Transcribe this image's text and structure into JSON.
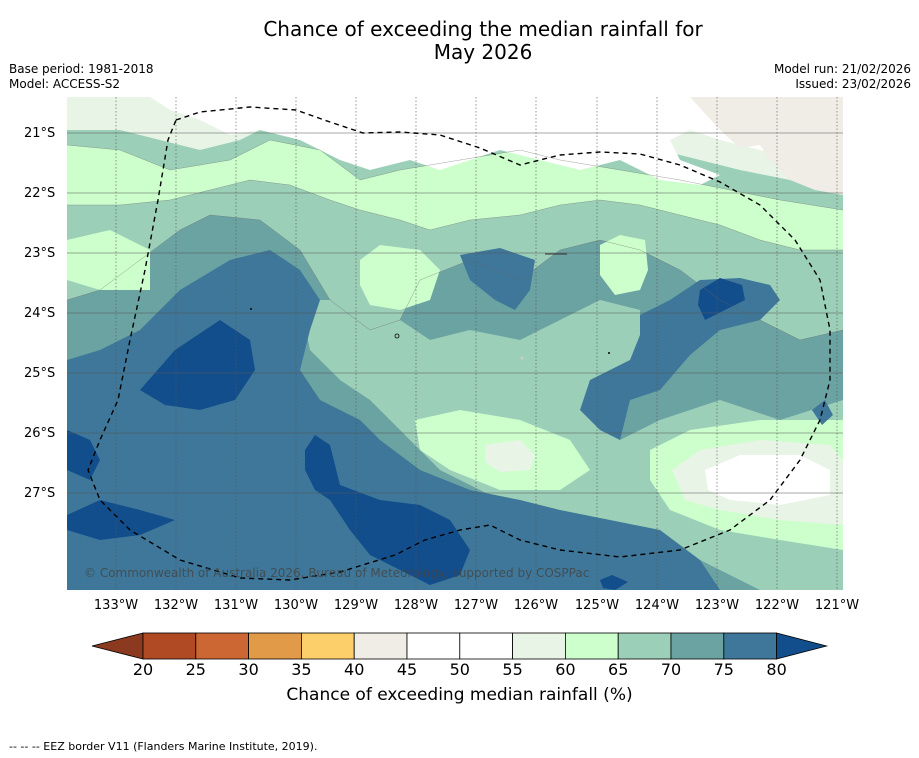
{
  "title": {
    "line1": "Chance of exceeding the median rainfall for",
    "line2": "May 2026"
  },
  "meta_left": {
    "base_period": "Base period: 1981-2018",
    "model": "Model: ACCESS-S2"
  },
  "meta_right": {
    "model_run": "Model run: 21/02/2026",
    "issued": "Issued: 23/02/2026"
  },
  "map": {
    "copyright": "© Commonwealth of Australia 2026, Bureau of Meteorology, supported by COSPPac",
    "lat_labels": [
      "21°S",
      "22°S",
      "23°S",
      "24°S",
      "25°S",
      "26°S",
      "27°S"
    ],
    "lon_labels": [
      "133°W",
      "132°W",
      "131°W",
      "130°W",
      "129°W",
      "128°W",
      "127°W",
      "126°W",
      "125°W",
      "124°W",
      "123°W",
      "122°W",
      "121°W"
    ]
  },
  "colorbar": {
    "ticks": [
      "20",
      "25",
      "30",
      "35",
      "40",
      "45",
      "50",
      "55",
      "60",
      "65",
      "70",
      "75",
      "80"
    ],
    "label": "Chance of exceeding median rainfall (%)",
    "colors": [
      "#8b3a20",
      "#b04a25",
      "#cc6633",
      "#e09a48",
      "#fdcf6b",
      "#f0ede6",
      "#ffffff",
      "#ffffff",
      "#e8f4e6",
      "#ccffcc",
      "#9ccfb8",
      "#6ba3a3",
      "#3e7799",
      "#134e8c"
    ]
  },
  "footer": "-- -- -- EEZ border V11 (Flanders Marine Institute, 2019)."
}
